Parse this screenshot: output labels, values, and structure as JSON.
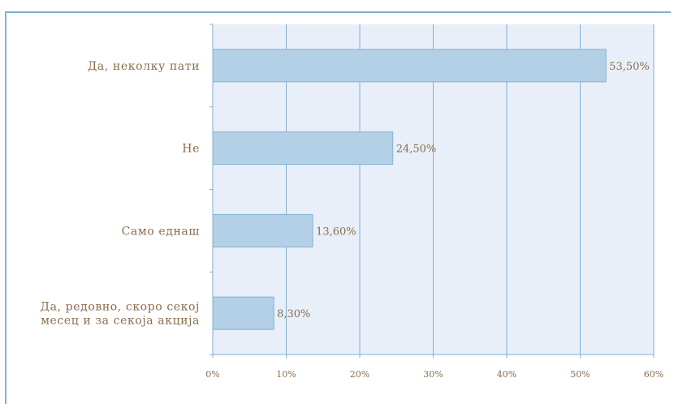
{
  "chart_data": {
    "type": "bar",
    "orientation": "horizontal",
    "categories": [
      [
        "Да,  неколку  пати"
      ],
      [
        "Не"
      ],
      [
        "Само  еднаш"
      ],
      [
        "Да,  редовно,  скоро  секој",
        "месец  и  за  секоја  акција"
      ]
    ],
    "values": [
      53.5,
      24.5,
      13.6,
      8.3
    ],
    "value_labels": [
      "53,50%",
      "24,50%",
      "13,60%",
      "8,30%"
    ],
    "xlim": [
      0,
      60
    ],
    "x_ticks": [
      "0%",
      "10%",
      "20%",
      "30%",
      "40%",
      "50%",
      "60%"
    ],
    "grid": true,
    "colors": {
      "bar_fill": "#b3d0e7",
      "bar_stroke": "#7fb2d6",
      "plot_bg": "#e8eff8",
      "grid": "#7fb2d6",
      "text": "#8a6d4c"
    }
  }
}
